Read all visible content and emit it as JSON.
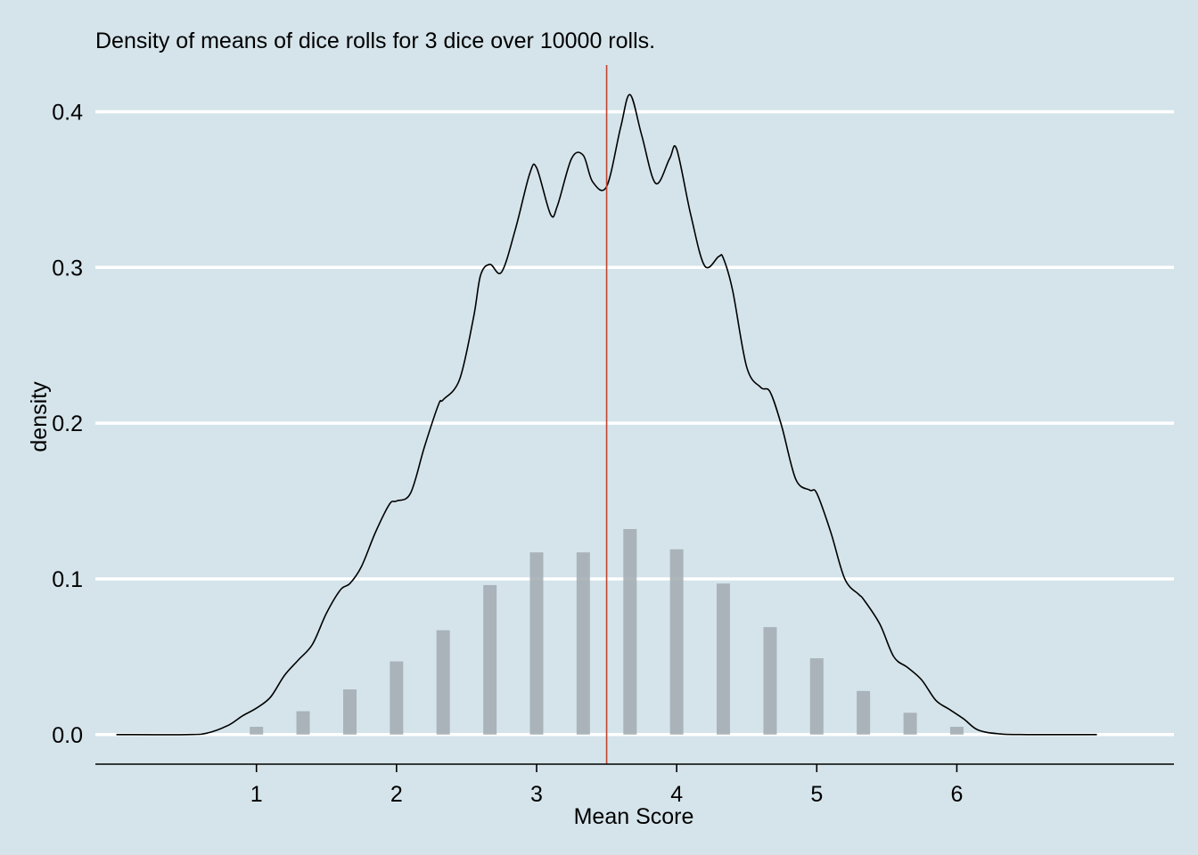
{
  "chart_data": {
    "type": "bar",
    "title": "Density of means of dice rolls for 3 dice over 10000 rolls.",
    "xlabel": "Mean Score",
    "ylabel": "density",
    "xlim": [
      -0.15,
      7.55
    ],
    "ylim": [
      -0.019,
      0.43
    ],
    "x_ticks": [
      1,
      2,
      3,
      4,
      5,
      6
    ],
    "x_tick_labels": [
      "1",
      "2",
      "3",
      "4",
      "5",
      "6"
    ],
    "y_ticks": [
      0.0,
      0.1,
      0.2,
      0.3,
      0.4
    ],
    "y_tick_labels": [
      "0.0",
      "0.1",
      "0.2",
      "0.3",
      "0.4"
    ],
    "grid": "horizontal major lines",
    "mean_line": 3.5,
    "bars": {
      "name": "",
      "x": [
        1,
        1.333,
        1.667,
        2,
        2.333,
        2.667,
        3,
        3.333,
        3.667,
        4,
        4.333,
        4.667,
        5,
        5.333,
        5.667,
        6
      ],
      "values": [
        0.005,
        0.015,
        0.029,
        0.047,
        0.067,
        0.096,
        0.117,
        0.117,
        0.132,
        0.119,
        0.097,
        0.069,
        0.049,
        0.028,
        0.014,
        0.005
      ]
    },
    "density": {
      "name": "",
      "x": [
        0,
        0.5,
        0.65,
        0.8,
        0.9,
        1.0,
        1.1,
        1.2,
        1.3,
        1.4,
        1.5,
        1.6,
        1.667,
        1.75,
        1.85,
        1.95,
        2.0,
        2.1,
        2.2,
        2.3,
        2.333,
        2.45,
        2.55,
        2.6,
        2.667,
        2.75,
        2.85,
        2.95,
        3.0,
        3.1,
        3.15,
        3.25,
        3.333,
        3.4,
        3.5,
        3.6,
        3.667,
        3.75,
        3.85,
        3.95,
        4.0,
        4.1,
        4.2,
        4.3,
        4.333,
        4.4,
        4.5,
        4.6,
        4.667,
        4.75,
        4.85,
        4.95,
        5.0,
        5.1,
        5.2,
        5.3,
        5.333,
        5.45,
        5.55,
        5.65,
        5.75,
        5.85,
        5.95,
        6.05,
        6.15,
        6.3,
        6.5,
        7.0
      ],
      "y": [
        0,
        0,
        0.001,
        0.006,
        0.012,
        0.017,
        0.024,
        0.038,
        0.048,
        0.058,
        0.078,
        0.093,
        0.097,
        0.108,
        0.13,
        0.148,
        0.15,
        0.155,
        0.185,
        0.212,
        0.215,
        0.228,
        0.268,
        0.295,
        0.302,
        0.297,
        0.325,
        0.36,
        0.364,
        0.334,
        0.34,
        0.37,
        0.372,
        0.355,
        0.352,
        0.39,
        0.411,
        0.385,
        0.354,
        0.37,
        0.376,
        0.334,
        0.301,
        0.307,
        0.306,
        0.285,
        0.236,
        0.223,
        0.22,
        0.198,
        0.164,
        0.157,
        0.155,
        0.13,
        0.1,
        0.09,
        0.087,
        0.071,
        0.05,
        0.043,
        0.035,
        0.022,
        0.016,
        0.01,
        0.003,
        0.0005,
        0,
        0
      ]
    }
  },
  "colors": {
    "background": "#d5e4eb",
    "bars": "#a1aab0",
    "density_line": "#000000",
    "mean_line": "#c0452f",
    "grid": "#ffffff",
    "axis": "#000000"
  }
}
